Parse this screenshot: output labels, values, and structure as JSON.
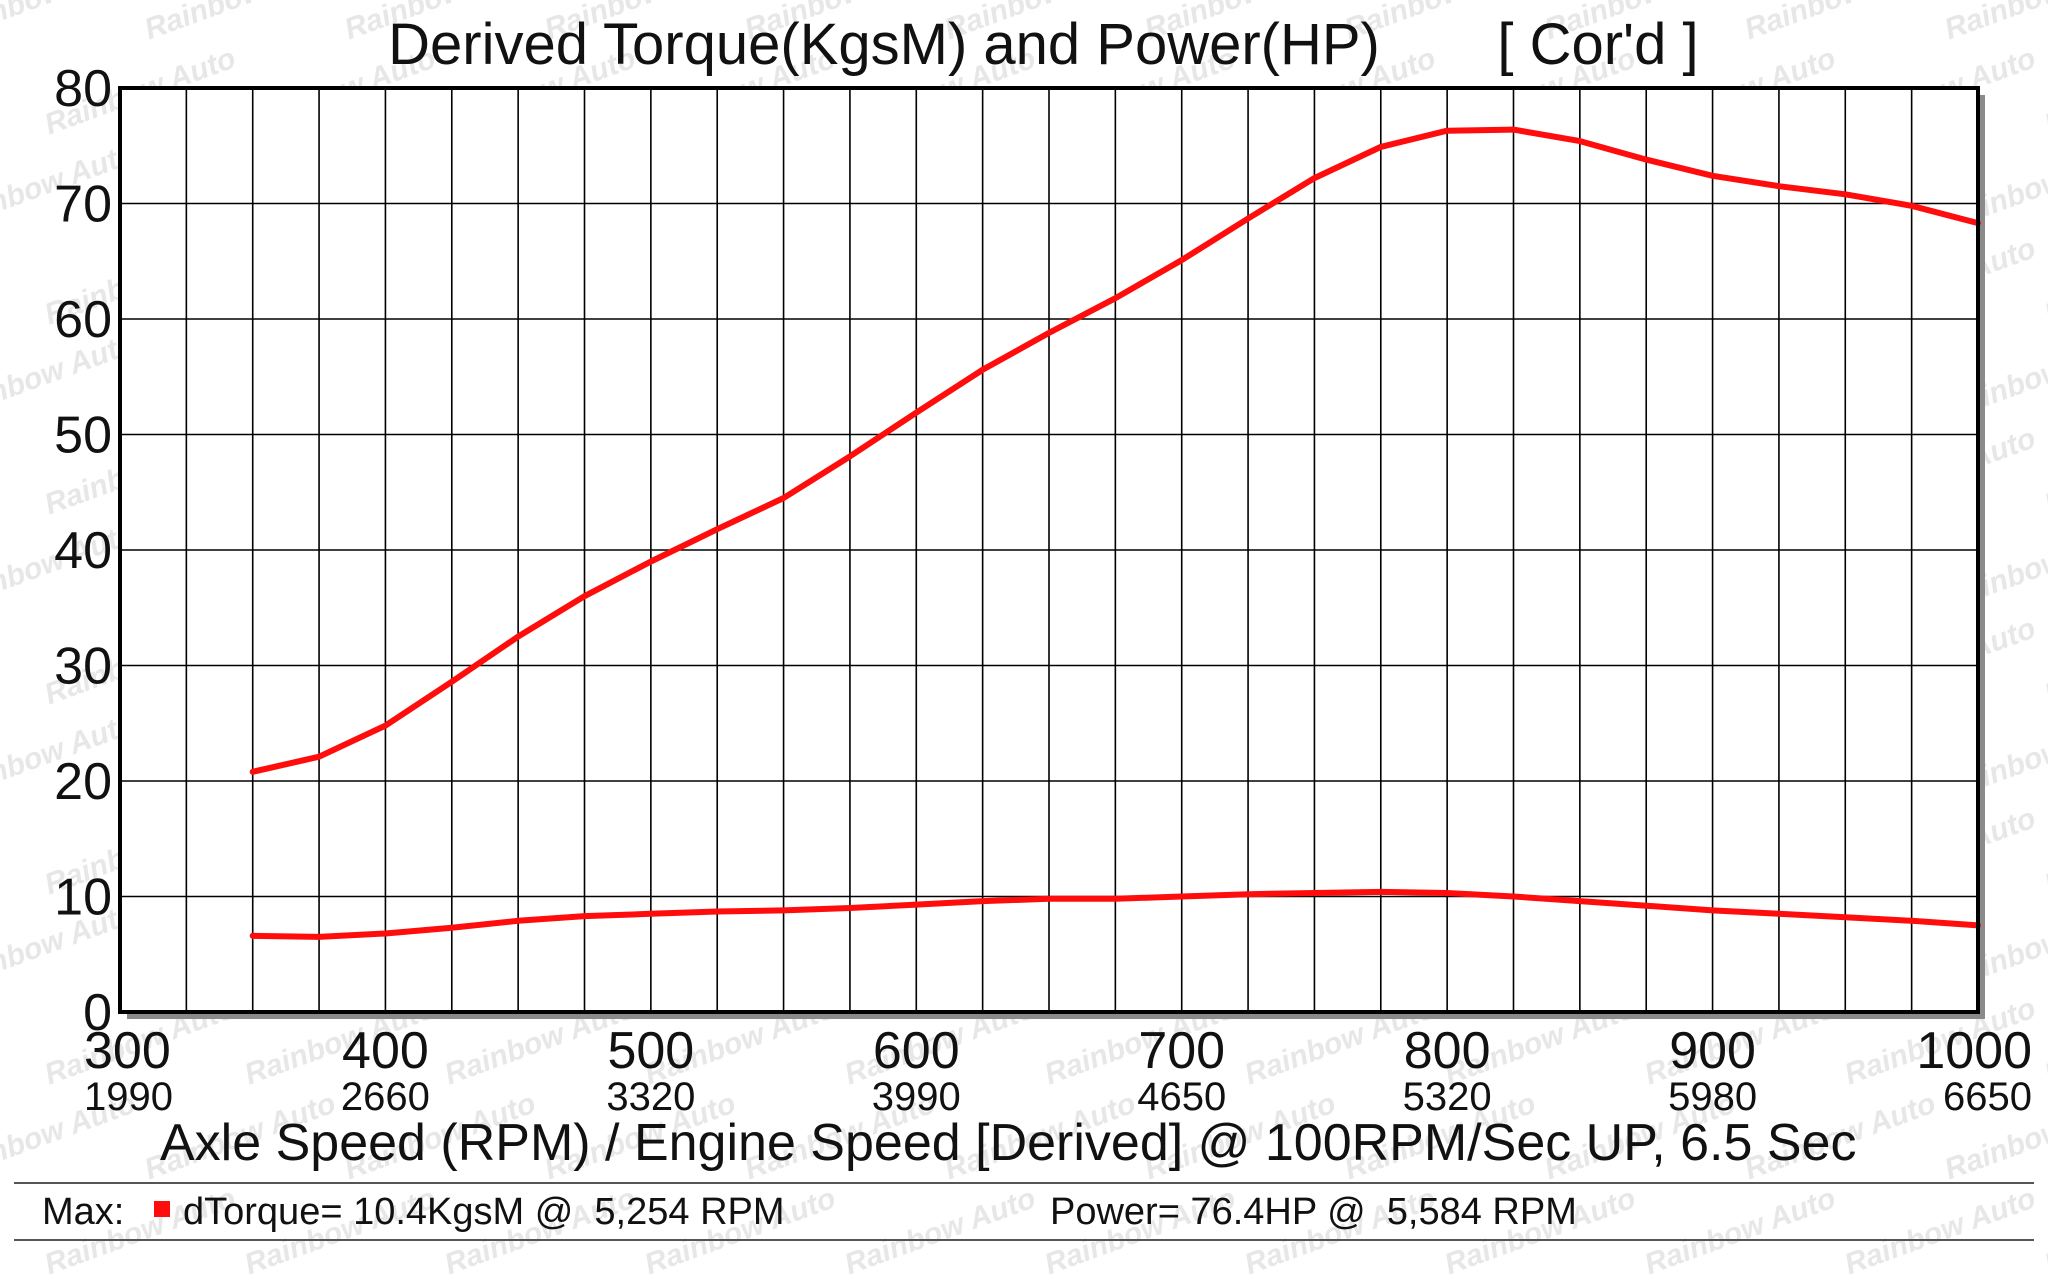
{
  "watermark": "Rainbow Auto",
  "chart_data": {
    "type": "line",
    "title": "Derived Torque(KgsM) and Power(HP)",
    "title_tag": "[ Cor'd ]",
    "xlabel": "Axle Speed (RPM) / Engine Speed [Derived] @ 100RPM/Sec UP, 6.5 Sec",
    "xlim": [
      300,
      1000
    ],
    "ylim": [
      0,
      80
    ],
    "x_step": 25,
    "y_step": 10,
    "x_ticks": [
      300,
      400,
      500,
      600,
      700,
      800,
      900,
      1000
    ],
    "x_tick_labels": [
      "300",
      "400",
      "500",
      "600",
      "700",
      "800",
      "900",
      "1000"
    ],
    "x_engine_labels": [
      "1990",
      "2660",
      "3320",
      "3990",
      "4650",
      "5320",
      "5980",
      "6650"
    ],
    "y_ticks": [
      0,
      10,
      20,
      30,
      40,
      50,
      60,
      70,
      80
    ],
    "y_tick_labels": [
      "0",
      "10",
      "20",
      "30",
      "40",
      "50",
      "60",
      "70",
      "80"
    ],
    "grid": true,
    "series_color": "#ff0d0d",
    "series": [
      {
        "name": "Power (HP)",
        "x": [
          350,
          375,
          400,
          425,
          450,
          475,
          500,
          525,
          550,
          575,
          600,
          625,
          650,
          675,
          700,
          725,
          750,
          775,
          800,
          825,
          850,
          875,
          900,
          925,
          950,
          975,
          1000
        ],
        "values": [
          20.8,
          22.1,
          24.8,
          28.6,
          32.5,
          36.0,
          39.0,
          41.8,
          44.5,
          48.1,
          51.9,
          55.6,
          58.8,
          61.8,
          65.1,
          68.7,
          72.2,
          74.9,
          76.3,
          76.4,
          75.4,
          73.8,
          72.4,
          71.5,
          70.8,
          69.8,
          68.3
        ]
      },
      {
        "name": "dTorque (KgsM)",
        "x": [
          350,
          375,
          400,
          425,
          450,
          475,
          500,
          525,
          550,
          575,
          600,
          625,
          650,
          675,
          700,
          725,
          750,
          775,
          800,
          825,
          850,
          875,
          900,
          925,
          950,
          975,
          1000
        ],
        "values": [
          6.6,
          6.5,
          6.8,
          7.3,
          7.9,
          8.3,
          8.5,
          8.7,
          8.8,
          9.0,
          9.3,
          9.6,
          9.8,
          9.8,
          10.0,
          10.2,
          10.3,
          10.4,
          10.3,
          10.0,
          9.6,
          9.2,
          8.8,
          8.5,
          8.2,
          7.9,
          7.5
        ]
      }
    ],
    "legend": {
      "max_label": "Max:",
      "torque_text": "dTorque= 10.4KgsM @  5,254 RPM",
      "power_text": "Power= 76.4HP @  5,584 RPM"
    }
  }
}
